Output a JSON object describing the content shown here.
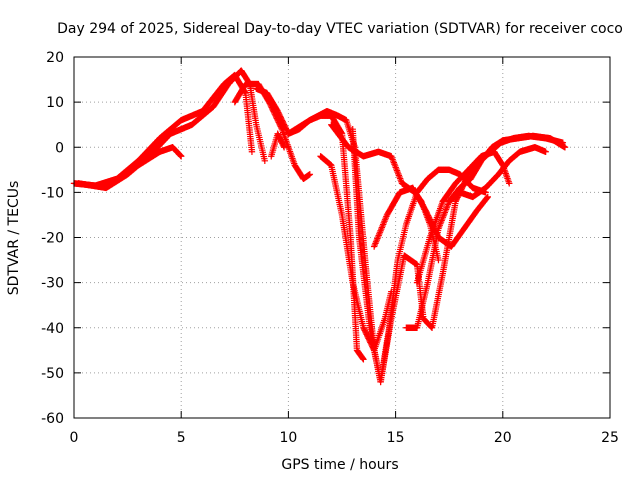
{
  "chart_data": {
    "type": "scatter",
    "title": "Day 294 of 2025, Sidereal Day-to-day VTEC variation (SDTVAR) for receiver coco",
    "xlabel": "GPS time / hours",
    "ylabel": "SDTVAR / TECUs",
    "xlim": [
      0,
      25
    ],
    "ylim": [
      -60,
      20
    ],
    "xticks": [
      0,
      5,
      10,
      15,
      20,
      25
    ],
    "yticks": [
      -60,
      -50,
      -40,
      -30,
      -20,
      -10,
      0,
      10,
      20
    ],
    "x_tick_labels": [
      "0",
      "5",
      "10",
      "15",
      "20",
      "25"
    ],
    "y_tick_labels": [
      "-60",
      "-50",
      "-40",
      "-30",
      "-20",
      "-10",
      "0",
      "10",
      "20"
    ],
    "grid": true,
    "marker": "plus",
    "color": "#ff0000",
    "series": [
      {
        "x": [
          0.0,
          1.0,
          2.0,
          3.0,
          4.0,
          5.0,
          6.0,
          7.0,
          7.5,
          8.0,
          8.3
        ],
        "y": [
          -8,
          -8.5,
          -7,
          -3,
          2,
          6,
          8,
          14,
          16,
          12,
          -1
        ]
      },
      {
        "x": [
          0.2,
          1.5,
          2.5,
          3.5,
          4.5,
          5.5,
          6.5,
          7.2,
          7.8,
          8.2,
          8.5,
          8.9
        ],
        "y": [
          -8,
          -9,
          -6,
          -2,
          3,
          5,
          9,
          14,
          17,
          14,
          5,
          -3
        ]
      },
      {
        "x": [
          3.0,
          4.0,
          4.6,
          5.0
        ],
        "y": [
          -4,
          -1,
          0,
          -2
        ]
      },
      {
        "x": [
          7.5,
          8.0,
          8.6,
          9.1,
          9.7,
          10.3,
          10.7,
          11.0
        ],
        "y": [
          10,
          14,
          14,
          10,
          4,
          -4,
          -7,
          -6
        ]
      },
      {
        "x": [
          8.5,
          9.0,
          9.5,
          10.0,
          10.5,
          11.0,
          11.5,
          12.0,
          12.5,
          12.9,
          13.2,
          13.5
        ],
        "y": [
          13,
          12,
          8,
          3,
          4,
          6,
          7,
          7,
          3,
          -20,
          -45,
          -47
        ]
      },
      {
        "x": [
          10.0,
          11.0,
          11.8,
          12.3,
          12.7,
          13.1,
          13.6,
          14.0,
          14.3,
          14.7,
          15.1,
          15.5,
          16.0,
          16.5,
          17.0,
          17.5,
          18.0,
          18.6,
          19.2
        ],
        "y": [
          3,
          6,
          8,
          7,
          6,
          0,
          -26,
          -45,
          -52,
          -40,
          -25,
          -17,
          -10,
          -7,
          -5,
          -5,
          -6,
          -9,
          -10
        ]
      },
      {
        "x": [
          9.2,
          9.5,
          9.8
        ],
        "y": [
          -2,
          3,
          0
        ]
      },
      {
        "x": [
          11.5,
          12.0,
          12.5,
          13.0,
          13.5,
          14.0,
          14.5,
          14.8
        ],
        "y": [
          -2,
          -4,
          -15,
          -30,
          -40,
          -45,
          -38,
          -32
        ]
      },
      {
        "x": [
          12.0,
          12.8,
          13.5,
          14.2,
          14.8,
          15.3,
          15.9,
          16.2,
          16.6,
          17.0
        ],
        "y": [
          5,
          0,
          -2,
          -1,
          -2,
          -8,
          -10,
          -12,
          -17,
          -25
        ]
      },
      {
        "x": [
          13.0,
          13.3,
          13.8,
          14.3,
          14.8,
          15.4,
          16.0,
          16.3,
          16.7,
          17.2,
          17.8,
          18.5,
          19.2,
          19.9,
          20.5,
          21.2,
          22.0,
          22.8
        ],
        "y": [
          4,
          -20,
          -40,
          -52,
          -38,
          -24,
          -26,
          -38,
          -40,
          -28,
          -12,
          -5,
          -2,
          1,
          2,
          2.5,
          2,
          1
        ]
      },
      {
        "x": [
          14.0,
          14.6,
          15.2,
          15.8,
          16.4,
          17.0,
          17.6,
          18.2,
          18.8,
          19.3
        ],
        "y": [
          -22,
          -15,
          -10,
          -9,
          -14,
          -20,
          -22,
          -18,
          -14,
          -11
        ]
      },
      {
        "x": [
          15.5,
          16.0,
          16.5,
          17.0,
          17.5,
          18.0,
          18.6,
          19.2,
          19.8,
          20.3,
          20.8,
          21.5,
          22.0
        ],
        "y": [
          -40,
          -40,
          -30,
          -18,
          -12,
          -10,
          -11,
          -9,
          -6,
          -3,
          -1,
          0,
          -1
        ]
      },
      {
        "x": [
          16.0,
          16.6,
          17.2,
          17.8,
          18.4,
          19.0,
          19.6,
          20.0,
          20.3
        ],
        "y": [
          -30,
          -20,
          -12,
          -8,
          -5,
          -2,
          -1,
          -4,
          -8
        ]
      },
      {
        "x": [
          17.5,
          18.0,
          18.5,
          19.0,
          19.5,
          20.0,
          20.7,
          21.4,
          22.2,
          22.9
        ],
        "y": [
          -12,
          -9,
          -7,
          -3,
          0,
          1.5,
          2,
          2.5,
          2,
          0
        ]
      }
    ]
  }
}
